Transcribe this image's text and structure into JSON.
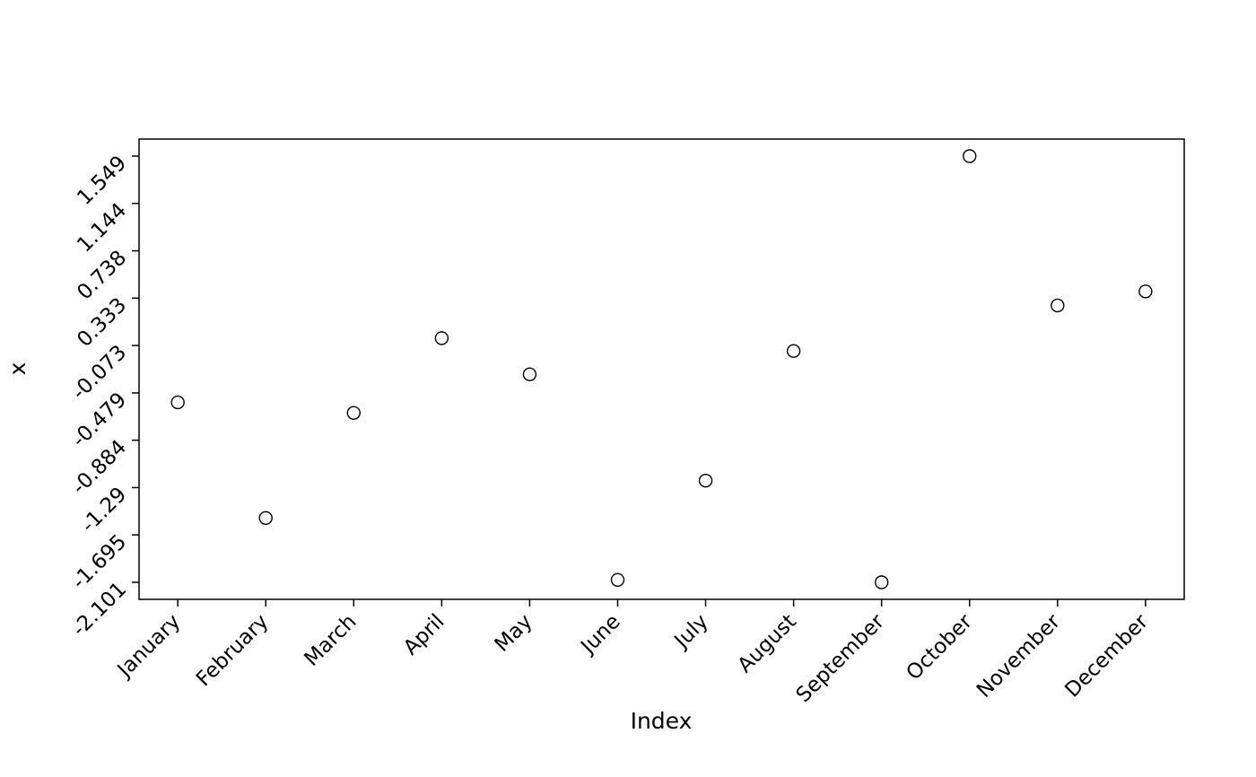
{
  "chart_data": {
    "type": "scatter",
    "title": "",
    "xlabel": "Index",
    "ylabel": "x",
    "categories": [
      "January",
      "February",
      "March",
      "April",
      "May",
      "June",
      "July",
      "August",
      "September",
      "October",
      "November",
      "December"
    ],
    "values": [
      -0.56,
      -1.55,
      -0.65,
      -0.01,
      -0.32,
      -2.08,
      -1.23,
      -0.12,
      -2.101,
      1.549,
      0.27,
      0.39
    ],
    "y_tick_labels": [
      "1.549",
      "1.144",
      "0.738",
      "0.333",
      "-0.073",
      "-0.479",
      "-0.884",
      "-1.29",
      "-1.695",
      "-2.101"
    ],
    "y_ticks": [
      1.549,
      1.144,
      0.738,
      0.333,
      -0.073,
      -0.479,
      -0.884,
      -1.29,
      -1.695,
      -2.101
    ],
    "ylim": [
      -2.247,
      1.695
    ],
    "x_index_range": [
      0.56,
      12.44
    ],
    "grid": false,
    "legend": null,
    "marker": "open-circle",
    "marker_radius": 7,
    "colors": {
      "point_stroke": "#000000",
      "axis": "#000000",
      "background": "#ffffff"
    }
  }
}
